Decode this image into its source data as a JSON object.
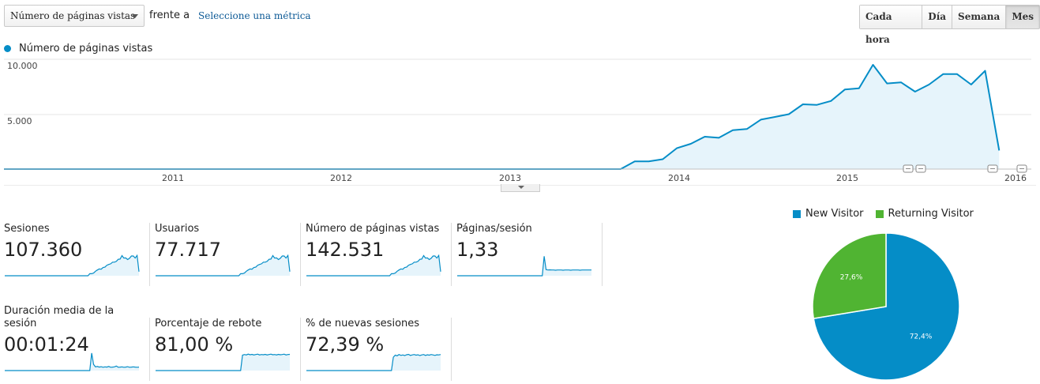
{
  "controls": {
    "metric_select_value": "Número de páginas vistas",
    "vs_text": "frente a",
    "select_metric_link": "Seleccione una métrica",
    "period_buttons": [
      {
        "label": "Cada hora",
        "active": false
      },
      {
        "label": "Día",
        "active": false
      },
      {
        "label": "Semana",
        "active": false
      },
      {
        "label": "Mes",
        "active": true
      }
    ]
  },
  "colors": {
    "series": "#058dc7",
    "series_fill": "#e6f4fb",
    "returning": "#50b432"
  },
  "chart_data": [
    {
      "type": "area",
      "legend": [
        "Número de páginas vistas"
      ],
      "legend_placement": "top-left",
      "grid": true,
      "ylim": [
        0,
        10000
      ],
      "y_ticks": [
        "10.000",
        "5.000"
      ],
      "y_tick_values": [
        10000,
        5000
      ],
      "x_ticks": [
        "2011",
        "2012",
        "2013",
        "2014",
        "2015",
        "2016"
      ],
      "annotation_markers": 4,
      "series": [
        {
          "name": "Número de páginas vistas",
          "x": [
            "2010-03",
            "2010-04",
            "2010-05",
            "2010-06",
            "2010-07",
            "2010-08",
            "2010-09",
            "2010-10",
            "2010-11",
            "2010-12",
            "2011-01",
            "2011-02",
            "2011-03",
            "2011-04",
            "2011-05",
            "2011-06",
            "2011-07",
            "2011-08",
            "2011-09",
            "2011-10",
            "2011-11",
            "2011-12",
            "2012-01",
            "2012-02",
            "2012-03",
            "2012-04",
            "2012-05",
            "2012-06",
            "2012-07",
            "2012-08",
            "2012-09",
            "2012-10",
            "2012-11",
            "2012-12",
            "2013-01",
            "2013-02",
            "2013-03",
            "2013-04",
            "2013-05",
            "2013-06",
            "2013-07",
            "2013-08",
            "2013-09",
            "2013-10",
            "2013-11",
            "2013-12",
            "2014-01",
            "2014-02",
            "2014-03",
            "2014-04",
            "2014-05",
            "2014-06",
            "2014-07",
            "2014-08",
            "2014-09",
            "2014-10",
            "2014-11",
            "2014-12",
            "2015-01",
            "2015-02",
            "2015-03",
            "2015-04",
            "2015-05",
            "2015-06",
            "2015-07",
            "2015-08",
            "2015-09",
            "2015-10",
            "2015-11",
            "2015-12",
            "2016-01",
            "2016-02"
          ],
          "values": [
            0,
            0,
            0,
            0,
            0,
            0,
            0,
            0,
            0,
            0,
            0,
            0,
            0,
            0,
            0,
            0,
            0,
            0,
            0,
            0,
            0,
            0,
            0,
            0,
            0,
            0,
            0,
            0,
            0,
            0,
            0,
            0,
            0,
            0,
            0,
            0,
            0,
            0,
            0,
            0,
            0,
            0,
            0,
            0,
            0,
            700,
            700,
            900,
            1900,
            2300,
            2950,
            2850,
            3550,
            3650,
            4500,
            4750,
            5000,
            5900,
            5850,
            6200,
            7250,
            7350,
            9500,
            7800,
            7900,
            7050,
            7700,
            8650,
            8650,
            7700,
            8950,
            1700
          ]
        }
      ]
    },
    {
      "type": "pie",
      "legend": [
        "New Visitor",
        "Returning Visitor"
      ],
      "legend_placement": "top",
      "categories": [
        "New Visitor",
        "Returning Visitor"
      ],
      "values": [
        72.4,
        27.6
      ],
      "labels": [
        "72,4%",
        "27,6%"
      ],
      "colors": [
        "#058dc7",
        "#50b432"
      ]
    }
  ],
  "scorecards": [
    {
      "label": "Sesiones",
      "value": "107.360",
      "spark": [
        0,
        0,
        0,
        0,
        0,
        0,
        0,
        0,
        0,
        0,
        0,
        0,
        0,
        0,
        0,
        0,
        0,
        0,
        0,
        0,
        0,
        0,
        0,
        0,
        0,
        0,
        0,
        0,
        0,
        0,
        0,
        0,
        0,
        0,
        0,
        0,
        0,
        0,
        0,
        0,
        0,
        0,
        0,
        0,
        0,
        10,
        10,
        13,
        22,
        28,
        33,
        32,
        40,
        42,
        51,
        55,
        58,
        66,
        66,
        70,
        80,
        81,
        98,
        86,
        87,
        79,
        85,
        96,
        96,
        86,
        99,
        20
      ]
    },
    {
      "label": "Usuarios",
      "value": "77.717",
      "spark": [
        0,
        0,
        0,
        0,
        0,
        0,
        0,
        0,
        0,
        0,
        0,
        0,
        0,
        0,
        0,
        0,
        0,
        0,
        0,
        0,
        0,
        0,
        0,
        0,
        0,
        0,
        0,
        0,
        0,
        0,
        0,
        0,
        0,
        0,
        0,
        0,
        0,
        0,
        0,
        0,
        0,
        0,
        0,
        0,
        0,
        10,
        10,
        13,
        22,
        28,
        33,
        32,
        40,
        42,
        51,
        55,
        58,
        66,
        66,
        70,
        80,
        81,
        98,
        86,
        87,
        79,
        85,
        96,
        96,
        86,
        99,
        20
      ]
    },
    {
      "label": "Número de páginas vistas",
      "value": "142.531",
      "spark": [
        0,
        0,
        0,
        0,
        0,
        0,
        0,
        0,
        0,
        0,
        0,
        0,
        0,
        0,
        0,
        0,
        0,
        0,
        0,
        0,
        0,
        0,
        0,
        0,
        0,
        0,
        0,
        0,
        0,
        0,
        0,
        0,
        0,
        0,
        0,
        0,
        0,
        0,
        0,
        0,
        0,
        0,
        0,
        0,
        0,
        10,
        10,
        13,
        22,
        28,
        33,
        32,
        40,
        42,
        51,
        55,
        58,
        66,
        66,
        70,
        80,
        81,
        98,
        86,
        87,
        79,
        85,
        96,
        96,
        86,
        99,
        20
      ]
    },
    {
      "label": "Páginas/sesión",
      "value": "1,33",
      "spark": [
        0,
        0,
        0,
        0,
        0,
        0,
        0,
        0,
        0,
        0,
        0,
        0,
        0,
        0,
        0,
        0,
        0,
        0,
        0,
        0,
        0,
        0,
        0,
        0,
        0,
        0,
        0,
        0,
        0,
        0,
        0,
        0,
        0,
        0,
        0,
        0,
        0,
        0,
        0,
        0,
        0,
        0,
        0,
        0,
        0,
        0,
        95,
        30,
        28,
        29,
        28,
        28,
        27,
        28,
        28,
        28,
        27,
        28,
        28,
        28,
        27,
        28,
        28,
        28,
        28,
        27,
        28,
        28,
        28,
        28,
        28,
        28
      ]
    },
    {
      "label": "Duración media de la sesión",
      "value": "00:01:24",
      "spark": [
        0,
        0,
        0,
        0,
        0,
        0,
        0,
        0,
        0,
        0,
        0,
        0,
        0,
        0,
        0,
        0,
        0,
        0,
        0,
        0,
        0,
        0,
        0,
        0,
        0,
        0,
        0,
        0,
        0,
        0,
        0,
        0,
        0,
        0,
        0,
        0,
        0,
        0,
        0,
        0,
        0,
        0,
        0,
        0,
        0,
        0,
        85,
        30,
        18,
        20,
        17,
        19,
        16,
        18,
        17,
        20,
        16,
        17,
        18,
        22,
        16,
        17,
        18,
        16,
        17,
        19,
        16,
        17,
        18,
        17,
        16,
        17
      ]
    },
    {
      "label": "Porcentaje de rebote",
      "value": "81,00 %",
      "spark": [
        0,
        0,
        0,
        0,
        0,
        0,
        0,
        0,
        0,
        0,
        0,
        0,
        0,
        0,
        0,
        0,
        0,
        0,
        0,
        0,
        0,
        0,
        0,
        0,
        0,
        0,
        0,
        0,
        0,
        0,
        0,
        0,
        0,
        0,
        0,
        0,
        0,
        0,
        0,
        0,
        0,
        0,
        0,
        0,
        0,
        0,
        75,
        78,
        76,
        80,
        77,
        79,
        76,
        78,
        80,
        76,
        78,
        77,
        79,
        76,
        78,
        80,
        77,
        78,
        76,
        79,
        77,
        78,
        80,
        76,
        78,
        79
      ]
    },
    {
      "label": "% de nuevas sesiones",
      "value": "72,39 %",
      "spark": [
        0,
        0,
        0,
        0,
        0,
        0,
        0,
        0,
        0,
        0,
        0,
        0,
        0,
        0,
        0,
        0,
        0,
        0,
        0,
        0,
        0,
        0,
        0,
        0,
        0,
        0,
        0,
        0,
        0,
        0,
        0,
        0,
        0,
        0,
        0,
        0,
        0,
        0,
        0,
        0,
        0,
        0,
        0,
        0,
        0,
        0,
        65,
        75,
        72,
        78,
        74,
        76,
        73,
        77,
        79,
        74,
        76,
        78,
        75,
        77,
        73,
        76,
        78,
        74,
        77,
        75,
        78,
        76,
        74,
        77,
        76,
        78
      ]
    }
  ]
}
